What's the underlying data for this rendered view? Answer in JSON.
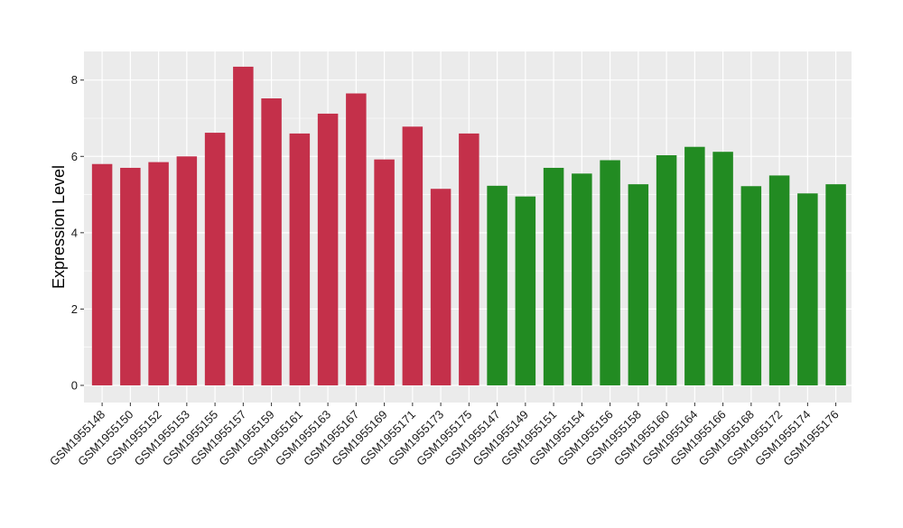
{
  "chart_data": {
    "type": "bar",
    "ylabel": "Expression Level",
    "xlabel": "",
    "title": "",
    "ylim": [
      -0.45,
      8.75
    ],
    "yticks": [
      0,
      2,
      4,
      6,
      8
    ],
    "grid": true,
    "colors": {
      "group_a": "#C4304A",
      "group_b": "#228B22",
      "panel": "#EBEBEB",
      "gridline": "#FFFFFF"
    },
    "categories": [
      "GSM1955148",
      "GSM1955150",
      "GSM1955152",
      "GSM1955153",
      "GSM1955155",
      "GSM1955157",
      "GSM1955159",
      "GSM1955161",
      "GSM1955163",
      "GSM1955167",
      "GSM1955169",
      "GSM1955171",
      "GSM1955173",
      "GSM1955175",
      "GSM1955147",
      "GSM1955149",
      "GSM1955151",
      "GSM1955154",
      "GSM1955156",
      "GSM1955158",
      "GSM1955160",
      "GSM1955164",
      "GSM1955166",
      "GSM1955168",
      "GSM1955172",
      "GSM1955174",
      "GSM1955176"
    ],
    "values": [
      5.8,
      5.7,
      5.85,
      6.0,
      6.62,
      8.35,
      7.52,
      6.6,
      7.12,
      7.65,
      5.92,
      6.78,
      5.15,
      6.6,
      5.23,
      4.95,
      5.7,
      5.55,
      5.9,
      5.27,
      6.03,
      6.25,
      6.12,
      5.22,
      5.5,
      5.03,
      5.27
    ],
    "bar_colors": [
      "group_a",
      "group_a",
      "group_a",
      "group_a",
      "group_a",
      "group_a",
      "group_a",
      "group_a",
      "group_a",
      "group_a",
      "group_a",
      "group_a",
      "group_a",
      "group_a",
      "group_b",
      "group_b",
      "group_b",
      "group_b",
      "group_b",
      "group_b",
      "group_b",
      "group_b",
      "group_b",
      "group_b",
      "group_b",
      "group_b",
      "group_b"
    ]
  }
}
